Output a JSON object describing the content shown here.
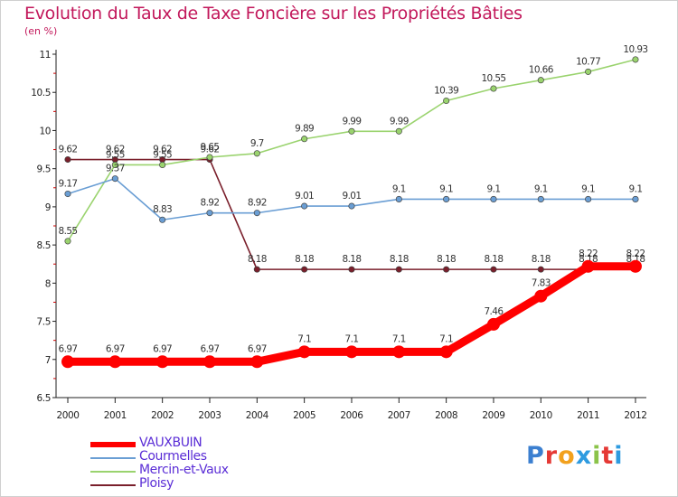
{
  "title": "Evolution du Taux de Taxe Foncière sur les Propriétés Bâties",
  "unit_label": "(en %)",
  "logo": {
    "text": "Proxiti",
    "letter_colors": [
      "#3b7fd0",
      "#e53935",
      "#f2a11d",
      "#2e9be0",
      "#8bc34a",
      "#e53935",
      "#2e9be0"
    ]
  },
  "chart_data": {
    "type": "line",
    "title": "Evolution du Taux de Taxe Foncière sur les Propriétés Bâties",
    "ylabel": "(en %)",
    "xlabel": "",
    "ylim": [
      6.5,
      11
    ],
    "yticks": [
      "6.5",
      "7",
      "7.5",
      "8",
      "8.5",
      "9",
      "9.5",
      "10",
      "10.5",
      "11"
    ],
    "categories": [
      "2000",
      "2001",
      "2002",
      "2003",
      "2004",
      "2005",
      "2006",
      "2007",
      "2008",
      "2009",
      "2010",
      "2011",
      "2012"
    ],
    "grid": false,
    "legend": "bottom-left",
    "series": [
      {
        "name": "Ploisy",
        "color": "#7a1f2b",
        "values": [
          9.62,
          9.62,
          9.62,
          9.62,
          8.18,
          8.18,
          8.18,
          8.18,
          8.18,
          8.18,
          8.18,
          8.18,
          8.18
        ],
        "labels": [
          "9.62",
          "9.62",
          "9.62",
          "9.62",
          "8.18",
          "8.18",
          "8.18",
          "8.18",
          "8.18",
          "8.18",
          "8.18",
          "8.18",
          "8.18"
        ]
      },
      {
        "name": "Mercin-et-Vaux",
        "color": "#9ad36e",
        "values": [
          8.55,
          9.55,
          9.55,
          9.65,
          9.7,
          9.89,
          9.99,
          9.99,
          10.39,
          10.55,
          10.66,
          10.77,
          10.93
        ],
        "labels": [
          "8.55",
          "9.55",
          "9.55",
          "9.65",
          "9.7",
          "9.89",
          "9.99",
          "9.99",
          "10.39",
          "10.55",
          "10.66",
          "10.77",
          "10.93"
        ]
      },
      {
        "name": "Courmelles",
        "color": "#6a9ed4",
        "values": [
          9.17,
          9.37,
          8.83,
          8.92,
          8.92,
          9.01,
          9.01,
          9.1,
          9.1,
          9.1,
          9.1,
          9.1,
          9.1
        ],
        "labels": [
          "9.17",
          "9.37",
          "8.83",
          "8.92",
          "8.92",
          "9.01",
          "9.01",
          "9.1",
          "9.1",
          "9.1",
          "9.1",
          "9.1",
          "9.1"
        ]
      },
      {
        "name": "VAUXBUIN",
        "color": "#ff0000",
        "values": [
          6.97,
          6.97,
          6.97,
          6.97,
          6.97,
          7.1,
          7.1,
          7.1,
          7.1,
          7.46,
          7.83,
          8.22,
          8.22
        ],
        "labels": [
          "6.97",
          "6.97",
          "6.97",
          "6.97",
          "6.97",
          "7.1",
          "7.1",
          "7.1",
          "7.1",
          "7.46",
          "7.83",
          "8.22",
          "8.22"
        ]
      }
    ],
    "legend_entries": [
      "VAUXBUIN",
      "Courmelles",
      "Mercin-et-Vaux",
      "Ploisy"
    ]
  }
}
